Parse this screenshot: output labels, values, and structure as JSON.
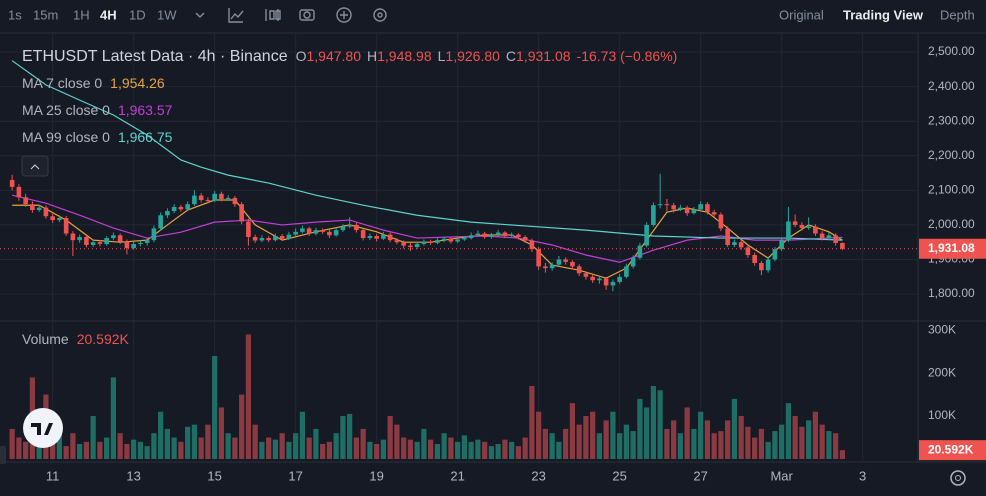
{
  "toolbar": {
    "intervals": [
      "1s",
      "15m",
      "1H",
      "4H",
      "1D",
      "1W"
    ],
    "active": "4H",
    "views": [
      "Original",
      "Trading View",
      "Depth"
    ],
    "active_view": "Trading View"
  },
  "chart_data": {
    "type": "candlestick",
    "header": {
      "symbol": "ETHUSDT Latest Data · 4h · Binance",
      "ohlc_legend": [
        {
          "key": "O",
          "value": "1,947.80"
        },
        {
          "key": "H",
          "value": "1,948.98"
        },
        {
          "key": "L",
          "value": "1,926.80"
        },
        {
          "key": "C",
          "value": "1,931.08"
        }
      ],
      "change": "-16.73 (−0.86%)"
    },
    "price_tag": "1,931.08",
    "up_color": "#26a69a",
    "down_color": "#ef5350",
    "volume_up_color": "#1f6e66",
    "volume_down_color": "#8c3a41",
    "xlim": [
      -1.8,
      134.2
    ],
    "xticks": [
      {
        "value": 6,
        "label": "11"
      },
      {
        "value": 18,
        "label": "13"
      },
      {
        "value": 30,
        "label": "15"
      },
      {
        "value": 42,
        "label": "17"
      },
      {
        "value": 54,
        "label": "19"
      },
      {
        "value": 66,
        "label": "21"
      },
      {
        "value": 78,
        "label": "23"
      },
      {
        "value": 90,
        "label": "25"
      },
      {
        "value": 102,
        "label": "27"
      },
      {
        "value": 114,
        "label": "Mar"
      },
      {
        "value": 126,
        "label": "3"
      }
    ],
    "ylim": [
      1725,
      2558
    ],
    "yticks": [
      {
        "value": 1800,
        "label": "1,800.00"
      },
      {
        "value": 1900,
        "label": "1,900.00"
      },
      {
        "value": 2000,
        "label": "2,000.00"
      },
      {
        "value": 2100,
        "label": "2,100.00"
      },
      {
        "value": 2200,
        "label": "2,200.00"
      },
      {
        "value": 2300,
        "label": "2,300.00"
      },
      {
        "value": 2400,
        "label": "2,400.00"
      },
      {
        "value": 2500,
        "label": "2,500.00"
      }
    ],
    "grid": true,
    "ohlc": [
      [
        2130,
        2145,
        2100,
        2110
      ],
      [
        2110,
        2118,
        2070,
        2080
      ],
      [
        2080,
        2090,
        2052,
        2060
      ],
      [
        2060,
        2068,
        2035,
        2043
      ],
      [
        2043,
        2058,
        2038,
        2050
      ],
      [
        2050,
        2056,
        2018,
        2025
      ],
      [
        2025,
        2032,
        2006,
        2014
      ],
      [
        2014,
        2028,
        2008,
        2020
      ],
      [
        2020,
        2026,
        1968,
        1975
      ],
      [
        1975,
        1982,
        1910,
        1956
      ],
      [
        1956,
        1972,
        1948,
        1965
      ],
      [
        1965,
        1970,
        1935,
        1942
      ],
      [
        1942,
        1958,
        1936,
        1950
      ],
      [
        1950,
        1956,
        1938,
        1945
      ],
      [
        1945,
        1968,
        1940,
        1962
      ],
      [
        1962,
        1978,
        1956,
        1970
      ],
      [
        1970,
        1975,
        1945,
        1952
      ],
      [
        1952,
        1958,
        1915,
        1933
      ],
      [
        1933,
        1952,
        1928,
        1945
      ],
      [
        1945,
        1955,
        1938,
        1948
      ],
      [
        1948,
        1962,
        1940,
        1956
      ],
      [
        1956,
        1998,
        1950,
        1990
      ],
      [
        1990,
        2036,
        1984,
        2028
      ],
      [
        2028,
        2048,
        2020,
        2040
      ],
      [
        2040,
        2060,
        2034,
        2052
      ],
      [
        2052,
        2058,
        2038,
        2045
      ],
      [
        2045,
        2068,
        2040,
        2060
      ],
      [
        2060,
        2100,
        2055,
        2085
      ],
      [
        2085,
        2092,
        2065,
        2072
      ],
      [
        2072,
        2080,
        2062,
        2070
      ],
      [
        2070,
        2098,
        2066,
        2090
      ],
      [
        2090,
        2096,
        2068,
        2075
      ],
      [
        2075,
        2086,
        2070,
        2078
      ],
      [
        2078,
        2084,
        2052,
        2060
      ],
      [
        2060,
        2066,
        2002,
        2010
      ],
      [
        2010,
        2018,
        1940,
        1965
      ],
      [
        1965,
        1972,
        1948,
        1955
      ],
      [
        1955,
        1970,
        1950,
        1962
      ],
      [
        1962,
        1968,
        1950,
        1956
      ],
      [
        1956,
        1975,
        1952,
        1968
      ],
      [
        1968,
        1974,
        1954,
        1960
      ],
      [
        1960,
        1980,
        1956,
        1972
      ],
      [
        1972,
        1990,
        1966,
        1980
      ],
      [
        1980,
        1998,
        1975,
        1990
      ],
      [
        1990,
        1995,
        1968,
        1975
      ],
      [
        1975,
        1992,
        1970,
        1985
      ],
      [
        1985,
        1990,
        1974,
        1980
      ],
      [
        1980,
        1986,
        1962,
        1970
      ],
      [
        1970,
        1992,
        1966,
        1985
      ],
      [
        1985,
        2002,
        1980,
        1995
      ],
      [
        1995,
        2022,
        1990,
        2000
      ],
      [
        2000,
        2006,
        1978,
        1985
      ],
      [
        1985,
        1990,
        1955,
        1962
      ],
      [
        1962,
        1975,
        1956,
        1968
      ],
      [
        1968,
        1974,
        1952,
        1960
      ],
      [
        1960,
        1980,
        1956,
        1972
      ],
      [
        1972,
        1978,
        1950,
        1956
      ],
      [
        1956,
        1962,
        1944,
        1950
      ],
      [
        1950,
        1955,
        1932,
        1940
      ],
      [
        1940,
        1948,
        1925,
        1936
      ],
      [
        1936,
        1952,
        1930,
        1945
      ],
      [
        1945,
        1958,
        1940,
        1952
      ],
      [
        1952,
        1957,
        1942,
        1948
      ],
      [
        1948,
        1962,
        1944,
        1956
      ],
      [
        1956,
        1966,
        1950,
        1960
      ],
      [
        1960,
        1964,
        1946,
        1952
      ],
      [
        1952,
        1964,
        1948,
        1958
      ],
      [
        1958,
        1968,
        1954,
        1962
      ],
      [
        1962,
        1978,
        1958,
        1970
      ],
      [
        1970,
        1984,
        1966,
        1975
      ],
      [
        1975,
        1980,
        1960,
        1965
      ],
      [
        1965,
        1977,
        1960,
        1971
      ],
      [
        1971,
        1986,
        1966,
        1978
      ],
      [
        1978,
        1982,
        1962,
        1968
      ],
      [
        1968,
        1978,
        1964,
        1972
      ],
      [
        1972,
        1976,
        1958,
        1965
      ],
      [
        1965,
        1970,
        1948,
        1955
      ],
      [
        1955,
        1960,
        1922,
        1930
      ],
      [
        1930,
        1936,
        1870,
        1880
      ],
      [
        1880,
        1890,
        1862,
        1875
      ],
      [
        1875,
        1892,
        1868,
        1885
      ],
      [
        1885,
        1910,
        1880,
        1900
      ],
      [
        1900,
        1906,
        1885,
        1893
      ],
      [
        1893,
        1898,
        1872,
        1880
      ],
      [
        1880,
        1886,
        1852,
        1860
      ],
      [
        1860,
        1866,
        1842,
        1850
      ],
      [
        1850,
        1856,
        1832,
        1840
      ],
      [
        1840,
        1852,
        1830,
        1845
      ],
      [
        1845,
        1850,
        1812,
        1825
      ],
      [
        1825,
        1842,
        1808,
        1835
      ],
      [
        1835,
        1858,
        1830,
        1850
      ],
      [
        1850,
        1888,
        1845,
        1880
      ],
      [
        1880,
        1912,
        1874,
        1905
      ],
      [
        1905,
        1948,
        1900,
        1940
      ],
      [
        1940,
        2008,
        1935,
        2000
      ],
      [
        2000,
        2065,
        1995,
        2057
      ],
      [
        2057,
        2148,
        2048,
        2060
      ],
      [
        2060,
        2075,
        2040,
        2057
      ],
      [
        2057,
        2064,
        2036,
        2045
      ],
      [
        2045,
        2058,
        2040,
        2050
      ],
      [
        2050,
        2056,
        2026,
        2034
      ],
      [
        2034,
        2052,
        2030,
        2045
      ],
      [
        2045,
        2068,
        2040,
        2060
      ],
      [
        2060,
        2066,
        2030,
        2037
      ],
      [
        2037,
        2044,
        2022,
        2030
      ],
      [
        2030,
        2036,
        1982,
        1990
      ],
      [
        1990,
        1996,
        1936,
        1942
      ],
      [
        1942,
        1958,
        1936,
        1950
      ],
      [
        1950,
        1956,
        1928,
        1935
      ],
      [
        1935,
        1942,
        1905,
        1913
      ],
      [
        1913,
        1920,
        1882,
        1890
      ],
      [
        1890,
        1896,
        1855,
        1869
      ],
      [
        1869,
        1908,
        1862,
        1900
      ],
      [
        1900,
        1936,
        1895,
        1930
      ],
      [
        1930,
        1962,
        1925,
        1956
      ],
      [
        1956,
        2052,
        1950,
        2010
      ],
      [
        2010,
        2030,
        1994,
        2000
      ],
      [
        2000,
        2008,
        1984,
        1991
      ],
      [
        1991,
        2022,
        1986,
        1995
      ],
      [
        1995,
        2002,
        1968,
        1975
      ],
      [
        1975,
        1982,
        1955,
        1962
      ],
      [
        1962,
        1978,
        1956,
        1970
      ],
      [
        1970,
        1976,
        1940,
        1947.8
      ],
      [
        1947.8,
        1948.98,
        1926.8,
        1931.08
      ]
    ],
    "ma_series": [
      {
        "name": "MA 7 close 0",
        "legend_value": "1,954.26",
        "color": "#e8a33d",
        "x": [
          0,
          4,
          8,
          12,
          16,
          20,
          23,
          26,
          30,
          33,
          36,
          40,
          45,
          50,
          54,
          58,
          62,
          66,
          70,
          74,
          77,
          80,
          84,
          88,
          91,
          94,
          97,
          100,
          103,
          106,
          109,
          112,
          115,
          118,
          121,
          123
        ],
        "values": [
          2057,
          2057,
          2014,
          1956,
          1950,
          1956,
          2000,
          2043,
          2072,
          2072,
          2000,
          1956,
          1980,
          2000,
          1980,
          1950,
          1950,
          1962,
          1971,
          1971,
          1942,
          1884,
          1869,
          1846,
          1875,
          1956,
          2037,
          2049,
          2037,
          1991,
          1942,
          1904,
          1962,
          2000,
          1980,
          1956
        ]
      },
      {
        "name": "MA 25 close 0",
        "legend_value": "1,963.57",
        "color": "#c23fd6",
        "x": [
          0,
          5,
          10,
          15,
          20,
          25,
          30,
          35,
          40,
          45,
          50,
          55,
          60,
          65,
          70,
          75,
          80,
          85,
          90,
          95,
          100,
          105,
          110,
          115,
          123
        ],
        "values": [
          2086,
          2063,
          2028,
          1991,
          1962,
          1979,
          2008,
          2014,
          2000,
          2008,
          2014,
          1985,
          1962,
          1965,
          1968,
          1962,
          1942,
          1913,
          1892,
          1927,
          1956,
          1968,
          1956,
          1956,
          1964
        ]
      },
      {
        "name": "MA 99 close 0",
        "legend_value": "1,966.75",
        "color": "#5fd3cc",
        "x": [
          0,
          5,
          10,
          15,
          20,
          25,
          28,
          32,
          38,
          45,
          52,
          60,
          68,
          76,
          85,
          95,
          105,
          115,
          123
        ],
        "values": [
          2475,
          2405,
          2361,
          2318,
          2260,
          2188,
          2167,
          2144,
          2121,
          2086,
          2057,
          2028,
          2008,
          1997,
          1985,
          1968,
          1962,
          1962,
          1956
        ]
      }
    ],
    "volume": {
      "label": "Volume",
      "value_label": "20.592K",
      "ylim": [
        0,
        319
      ],
      "yticks": [
        {
          "value": 100,
          "label": "100K"
        },
        {
          "value": 200,
          "label": "200K"
        },
        {
          "value": 300,
          "label": "300K"
        }
      ],
      "values": [
        70,
        50,
        40,
        190,
        60,
        150,
        90,
        70,
        30,
        60,
        35,
        40,
        100,
        40,
        50,
        190,
        60,
        35,
        45,
        40,
        30,
        60,
        110,
        70,
        50,
        40,
        75,
        80,
        50,
        80,
        240,
        120,
        60,
        50,
        150,
        290,
        80,
        40,
        50,
        45,
        60,
        40,
        60,
        110,
        50,
        70,
        35,
        40,
        60,
        100,
        105,
        50,
        70,
        40,
        35,
        45,
        100,
        80,
        50,
        45,
        40,
        70,
        45,
        35,
        60,
        50,
        40,
        55,
        40,
        45,
        40,
        30,
        35,
        45,
        40,
        30,
        50,
        170,
        110,
        70,
        60,
        40,
        70,
        130,
        80,
        100,
        110,
        60,
        90,
        110,
        60,
        80,
        65,
        140,
        120,
        170,
        160,
        70,
        90,
        60,
        120,
        70,
        110,
        90,
        60,
        65,
        90,
        140,
        100,
        75,
        50,
        70,
        40,
        65,
        80,
        130,
        100,
        75,
        90,
        110,
        80,
        65,
        60,
        20.592
      ]
    }
  }
}
